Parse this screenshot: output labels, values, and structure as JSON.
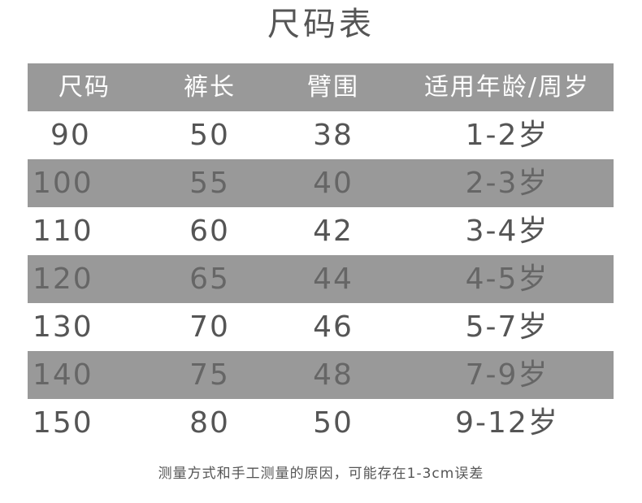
{
  "title": "尺码表",
  "header": [
    "尺码",
    "裤长",
    "臂围",
    "适用年龄/周岁"
  ],
  "rows": [
    [
      "90",
      "50",
      "38",
      "1-2岁"
    ],
    [
      "100",
      "55",
      "40",
      "2-3岁"
    ],
    [
      "110",
      "60",
      "42",
      "3-4岁"
    ],
    [
      "120",
      "65",
      "44",
      "4-5岁"
    ],
    [
      "130",
      "70",
      "46",
      "5-7岁"
    ],
    [
      "140",
      "75",
      "48",
      "7-9岁"
    ],
    [
      "150",
      "80",
      "50",
      "9-12岁"
    ]
  ],
  "footer": "测量方式和手工测量的原因，可能存在1-3cm误差",
  "colors": {
    "header_bg": "#999999",
    "alt_row_bg": "#999999",
    "text": "#555555"
  }
}
